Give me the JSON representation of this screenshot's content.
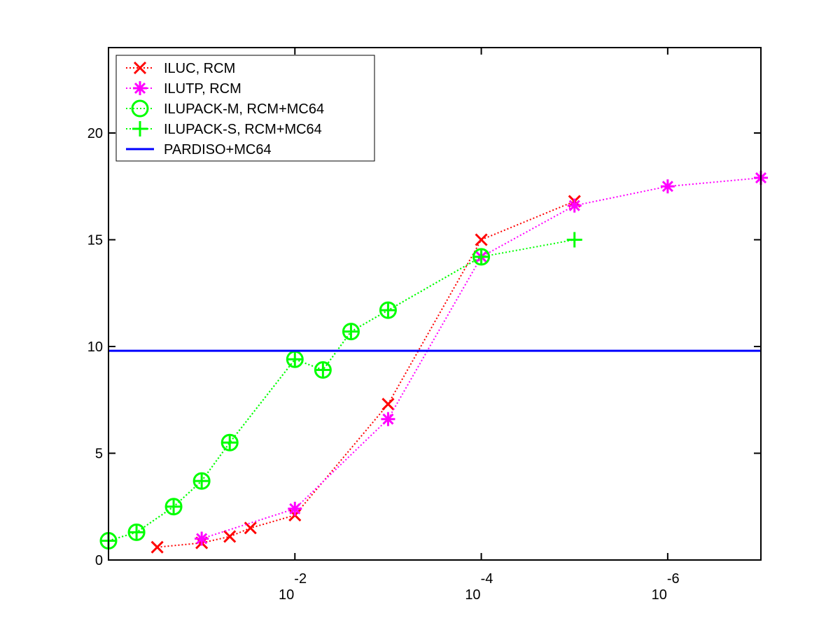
{
  "chart_data": {
    "type": "line",
    "title": "",
    "xlabel": "",
    "ylabel": "",
    "x_scale": "log",
    "x_direction": "decreasing",
    "xlim": [
      1,
      1e-07
    ],
    "ylim": [
      0,
      24
    ],
    "grid": false,
    "legend_placement": "top-left",
    "x_tick_labels": [
      {
        "x": 0.01,
        "base": "10",
        "exponent": "-2"
      },
      {
        "x": 0.0001,
        "base": "10",
        "exponent": "-4"
      },
      {
        "x": 1e-06,
        "base": "10",
        "exponent": "-6"
      }
    ],
    "y_ticks": [
      0,
      5,
      10,
      15,
      20
    ],
    "y_tick_labels": [
      "0",
      "5",
      "10",
      "15",
      "20"
    ],
    "series": [
      {
        "name": "ILUC, RCM",
        "color": "#ff0000",
        "line_style": "dotted",
        "marker": "x",
        "points": [
          {
            "x": 0.3,
            "y": 0.6
          },
          {
            "x": 0.1,
            "y": 0.8
          },
          {
            "x": 0.05,
            "y": 1.1
          },
          {
            "x": 0.03,
            "y": 1.5
          },
          {
            "x": 0.01,
            "y": 2.1
          },
          {
            "x": 0.001,
            "y": 7.3
          },
          {
            "x": 0.0001,
            "y": 15.0
          },
          {
            "x": 1e-05,
            "y": 16.8
          }
        ]
      },
      {
        "name": "ILUTP, RCM",
        "color": "#ff00ff",
        "line_style": "dotted",
        "marker": "asterisk",
        "points": [
          {
            "x": 0.1,
            "y": 1.0
          },
          {
            "x": 0.01,
            "y": 2.4
          },
          {
            "x": 0.001,
            "y": 6.6
          },
          {
            "x": 0.0001,
            "y": 14.2
          },
          {
            "x": 1e-05,
            "y": 16.6
          },
          {
            "x": 1e-06,
            "y": 17.5
          },
          {
            "x": 1e-07,
            "y": 17.9
          }
        ]
      },
      {
        "name": "ILUPACK-M, RCM+MC64",
        "color": "#00ff00",
        "line_style": "dotted",
        "marker": "circle",
        "points": [
          {
            "x": 1.0,
            "y": 0.9
          },
          {
            "x": 0.5,
            "y": 1.3
          },
          {
            "x": 0.2,
            "y": 2.5
          },
          {
            "x": 0.1,
            "y": 3.7
          },
          {
            "x": 0.05,
            "y": 5.5
          },
          {
            "x": 0.01,
            "y": 9.4
          },
          {
            "x": 0.005,
            "y": 8.9
          },
          {
            "x": 0.0025,
            "y": 10.7
          },
          {
            "x": 0.001,
            "y": 11.7
          },
          {
            "x": 0.0001,
            "y": 14.2
          }
        ]
      },
      {
        "name": "ILUPACK-S, RCM+MC64",
        "color": "#00ff00",
        "line_style": "dotted",
        "marker": "plus",
        "points": [
          {
            "x": 1.0,
            "y": 0.9
          },
          {
            "x": 0.5,
            "y": 1.3
          },
          {
            "x": 0.2,
            "y": 2.5
          },
          {
            "x": 0.1,
            "y": 3.7
          },
          {
            "x": 0.05,
            "y": 5.5
          },
          {
            "x": 0.01,
            "y": 9.4
          },
          {
            "x": 0.005,
            "y": 8.9
          },
          {
            "x": 0.0025,
            "y": 10.7
          },
          {
            "x": 0.001,
            "y": 11.7
          },
          {
            "x": 0.0001,
            "y": 14.2
          },
          {
            "x": 1e-05,
            "y": 15.0
          }
        ]
      },
      {
        "name": "PARDISO+MC64",
        "color": "#0000ff",
        "line_style": "solid",
        "marker": "none",
        "constant_y": 9.8,
        "points": [
          {
            "x": 1.0,
            "y": 9.8
          },
          {
            "x": 1e-07,
            "y": 9.8
          }
        ]
      }
    ]
  }
}
